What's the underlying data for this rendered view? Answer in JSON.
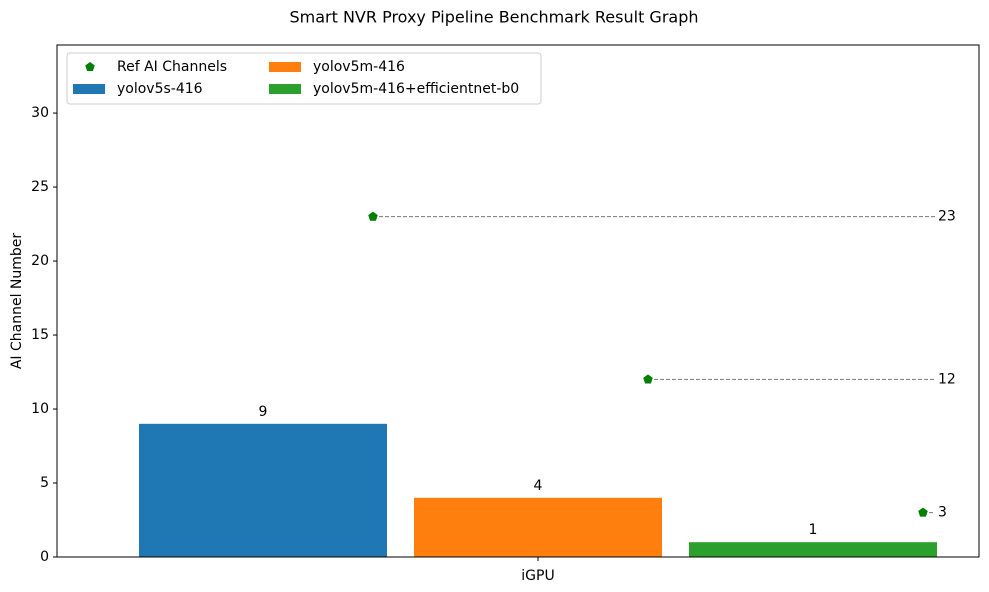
{
  "chart_data": {
    "type": "bar",
    "title": "Smart NVR Proxy Pipeline Benchmark Result Graph",
    "ylabel": "AI Channel Number",
    "categories": [
      "iGPU"
    ],
    "series": [
      {
        "name": "yolov5s-416",
        "color": "#1f77b4",
        "values": [
          9
        ]
      },
      {
        "name": "yolov5m-416",
        "color": "#ff7f0e",
        "values": [
          4
        ]
      },
      {
        "name": "yolov5m-416+efficientnet-b0",
        "color": "#2ca02c",
        "values": [
          1
        ]
      }
    ],
    "reference": {
      "name": "Ref AI Channels",
      "color": "#008000",
      "values": [
        23,
        12,
        3
      ]
    },
    "ylim": [
      0,
      34.6
    ],
    "yticks": [
      0,
      5,
      10,
      15,
      20,
      25,
      30
    ],
    "legend": "upper left"
  }
}
